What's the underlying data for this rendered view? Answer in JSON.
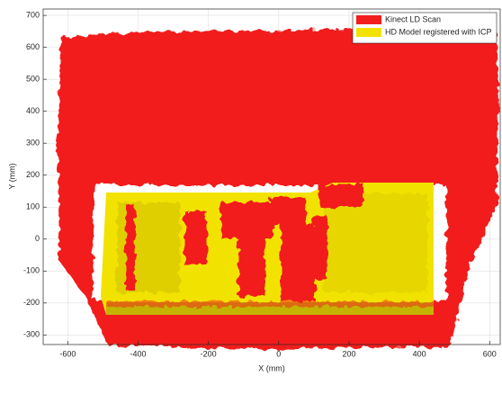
{
  "chart_data": {
    "type": "scatter",
    "xlabel": "X (mm)",
    "ylabel": "Y (mm)",
    "series": [
      {
        "name": "Kinect LD Scan",
        "color": "#f21d1d"
      },
      {
        "name": "HD Model registered with ICP",
        "color": "#f2e200"
      }
    ],
    "xlim": [
      -670,
      630
    ],
    "xticks": [
      -600,
      -400,
      -200,
      0,
      200,
      400,
      600
    ],
    "ylim": [
      -330,
      720
    ],
    "yticks": [
      -300,
      -200,
      -100,
      0,
      100,
      200,
      300,
      400,
      500,
      600,
      700
    ],
    "grid": true,
    "legend": "top-right"
  }
}
